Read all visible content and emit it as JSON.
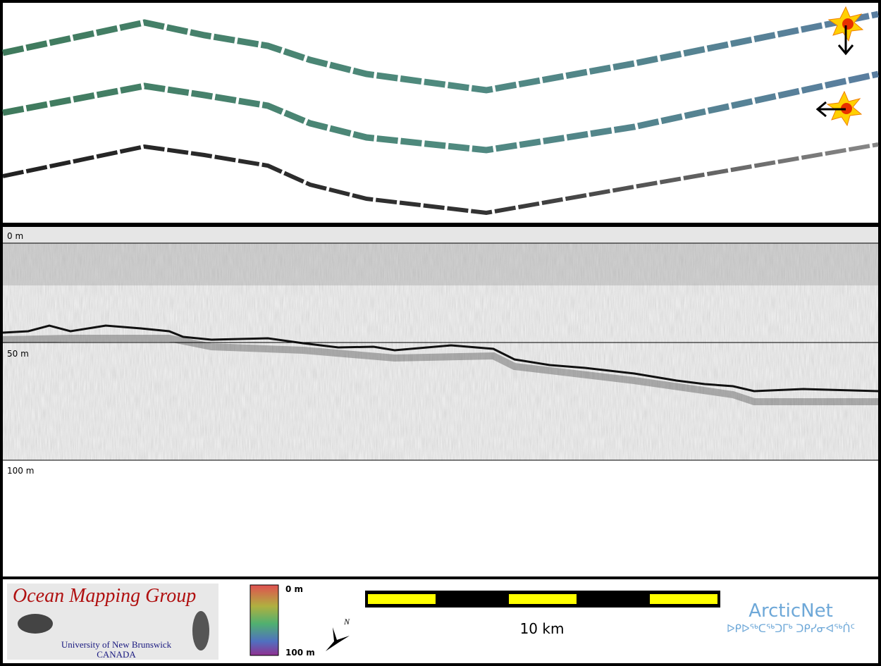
{
  "profile": {
    "depth_labels": [
      "0 m",
      "50 m",
      "100 m"
    ]
  },
  "legend": {
    "logo": {
      "title": "Ocean Mapping Group",
      "line1": "University of New Brunswick",
      "line2": "CANADA"
    },
    "colorbar": {
      "top": "0 m",
      "bottom": "100 m"
    },
    "north": "N",
    "scale_bar": "10 km",
    "partner": {
      "name": "ArcticNet",
      "syllabics": "ᐅᑭᐅᖅᑕᖅᑐᒥᒃ ᑐᑭᓯᓂᐊᖅᑏᑦ"
    }
  }
}
